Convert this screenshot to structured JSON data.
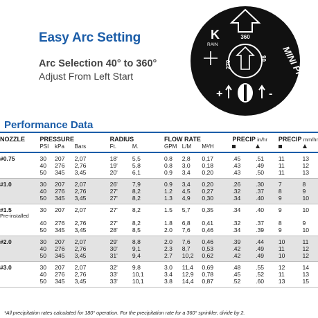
{
  "hero": {
    "title": "Easy Arc Setting",
    "subtitle1": "Arc Selection 40° to 360°",
    "subtitle2": "Adjust From Left Start"
  },
  "dial": {
    "brand_letter": "K",
    "brand_word": "RAIN",
    "label_360": "360",
    "label_270": "270",
    "label_90": "90",
    "product": "MINI PRO",
    "adjust_plus": "+",
    "adjust_minus": "-"
  },
  "performance": {
    "title": "Performance Data",
    "headers": {
      "nozzle": "NOZZLE",
      "pressure": "PRESSURE",
      "radius": "RADIUS",
      "flow": "FLOW RATE",
      "precip1": "PRECIP",
      "precip1_units": "in/hr",
      "precip2": "PRECIP",
      "precip2_units": "mm/hr"
    },
    "subheaders": {
      "psi": "PSI",
      "kpa": "kPa",
      "bars": "Bars",
      "ft": "Ft.",
      "m": "M.",
      "gpm": "GPM",
      "lm": "L/M",
      "m3h": "M³/H"
    },
    "groups": [
      {
        "nozzle": "#0.75",
        "note": "",
        "rows": [
          [
            "30",
            "207",
            "2,07",
            "18'",
            "5,5",
            "0.8",
            "2,8",
            "0,17",
            ".45",
            ".51",
            "11",
            "13"
          ],
          [
            "40",
            "276",
            "2,76",
            "19'",
            "5,8",
            "0.8",
            "3,0",
            "0,18",
            ".43",
            ".49",
            "11",
            "12"
          ],
          [
            "50",
            "345",
            "3,45",
            "20'",
            "6,1",
            "0.9",
            "3,4",
            "0,20",
            ".43",
            ".50",
            "11",
            "13"
          ]
        ]
      },
      {
        "nozzle": "#1.0",
        "note": "",
        "rows": [
          [
            "30",
            "207",
            "2,07",
            "26'",
            "7,9",
            "0.9",
            "3,4",
            "0,20",
            ".26",
            ".30",
            "7",
            "8"
          ],
          [
            "40",
            "276",
            "2,76",
            "27'",
            "8,2",
            "1.2",
            "4,5",
            "0,27",
            ".32",
            ".37",
            "8",
            "9"
          ],
          [
            "50",
            "345",
            "3,45",
            "27'",
            "8,2",
            "1.3",
            "4,9",
            "0,30",
            ".34",
            ".40",
            "9",
            "10"
          ]
        ]
      },
      {
        "nozzle": "#1.5",
        "note": "Pre-installed",
        "rows": [
          [
            "30",
            "207",
            "2,07",
            "27'",
            "8,2",
            "1.5",
            "5,7",
            "0,35",
            ".34",
            ".40",
            "9",
            "10"
          ],
          [
            "40",
            "276",
            "2,76",
            "27'",
            "8,2",
            "1.8",
            "6,8",
            "0,41",
            ".32",
            ".37",
            "8",
            "9"
          ],
          [
            "50",
            "345",
            "3,45",
            "28'",
            "8,5",
            "2.0",
            "7,6",
            "0,46",
            ".34",
            ".39",
            "9",
            "10"
          ]
        ]
      },
      {
        "nozzle": "#2.0",
        "note": "",
        "rows": [
          [
            "30",
            "207",
            "2,07",
            "29'",
            "8,8",
            "2.0",
            "7,6",
            "0,46",
            ".39",
            ".44",
            "10",
            "11"
          ],
          [
            "40",
            "276",
            "2,76",
            "30'",
            "9,1",
            "2.3",
            "8,7",
            "0,53",
            ".42",
            ".49",
            "11",
            "12"
          ],
          [
            "50",
            "345",
            "3,45",
            "31'",
            "9,4",
            "2.7",
            "10,2",
            "0,62",
            ".42",
            ".49",
            "10",
            "12"
          ]
        ]
      },
      {
        "nozzle": "#3.0",
        "note": "",
        "rows": [
          [
            "30",
            "207",
            "2,07",
            "32'",
            "9,8",
            "3.0",
            "11,4",
            "0,69",
            ".48",
            ".55",
            "12",
            "14"
          ],
          [
            "40",
            "276",
            "2,76",
            "33'",
            "10,1",
            "3.4",
            "12,9",
            "0,78",
            ".45",
            ".52",
            "11",
            "13"
          ],
          [
            "50",
            "345",
            "3,45",
            "33'",
            "10,1",
            "3.8",
            "14,4",
            "0,87",
            ".52",
            ".60",
            "13",
            "15"
          ]
        ]
      }
    ],
    "footnote": "*All precipitation rates calculated for 180° operation. For the precipitation rate for a 360° sprinkler, divide by 2."
  }
}
